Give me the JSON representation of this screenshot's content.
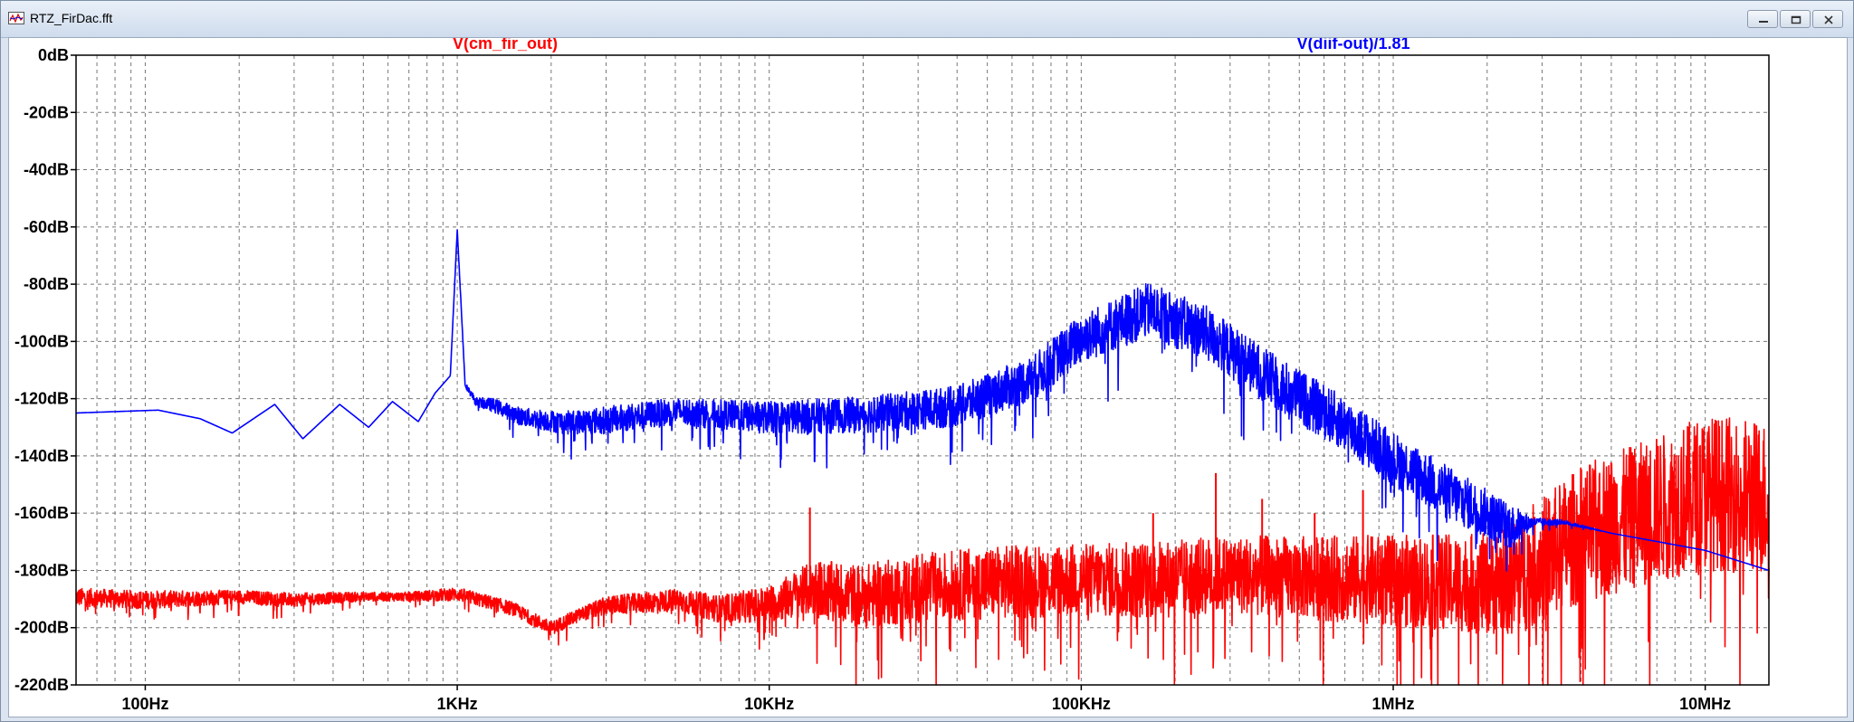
{
  "window": {
    "title": "RTZ_FirDac.fft",
    "icon": "waveform-file-icon",
    "buttons": [
      "minimize-icon",
      "maximize-icon",
      "close-icon"
    ]
  },
  "chart_data": {
    "type": "line",
    "xscale": "log",
    "xlim": [
      60,
      16000000
    ],
    "ylim": [
      -220,
      0
    ],
    "grid": true,
    "xlabel": "",
    "ylabel": "",
    "x_ticks": [
      {
        "value": 100,
        "label": "100Hz"
      },
      {
        "value": 1000,
        "label": "1KHz"
      },
      {
        "value": 10000,
        "label": "10KHz"
      },
      {
        "value": 100000,
        "label": "100KHz"
      },
      {
        "value": 1000000,
        "label": "1MHz"
      },
      {
        "value": 10000000,
        "label": "10MHz"
      }
    ],
    "y_ticks": [
      {
        "value": 0,
        "label": "0dB"
      },
      {
        "value": -20,
        "label": "-20dB"
      },
      {
        "value": -40,
        "label": "-40dB"
      },
      {
        "value": -60,
        "label": "-60dB"
      },
      {
        "value": -80,
        "label": "-80dB"
      },
      {
        "value": -100,
        "label": "-100dB"
      },
      {
        "value": -120,
        "label": "-120dB"
      },
      {
        "value": -140,
        "label": "-140dB"
      },
      {
        "value": -160,
        "label": "-160dB"
      },
      {
        "value": -180,
        "label": "-180dB"
      },
      {
        "value": -200,
        "label": "-200dB"
      },
      {
        "value": -220,
        "label": "-220dB"
      }
    ],
    "series": [
      {
        "name": "V(cm_fir_out)",
        "color": "#ff0000",
        "envelope": {
          "x": [
            60,
            100,
            200,
            300,
            500,
            700,
            1000,
            1500,
            2000,
            2500,
            3000,
            5000,
            7000,
            10000,
            14000,
            20000,
            30000,
            50000,
            100000,
            170000,
            300000,
            500000,
            1000000,
            2000000,
            2500000,
            4000000,
            7000000,
            10000000,
            16000000
          ],
          "y": [
            -189,
            -190,
            -189,
            -190,
            -189,
            -189,
            -188,
            -193,
            -200,
            -195,
            -192,
            -190,
            -193,
            -191,
            -185,
            -188,
            -185,
            -183,
            -182,
            -182,
            -180,
            -181,
            -182,
            -183,
            -180,
            -165,
            -156,
            -150,
            -152
          ]
        },
        "noise_db": [
          4,
          4,
          3,
          3,
          2,
          2,
          3,
          3,
          3,
          3,
          4,
          5,
          6,
          8,
          12,
          14,
          15,
          16,
          16,
          17,
          17,
          18,
          20,
          22,
          26,
          30,
          32,
          34,
          34
        ],
        "spurs": [
          {
            "x": 13500,
            "y": -158
          },
          {
            "x": 170000,
            "y": -160
          },
          {
            "x": 270000,
            "y": -146
          },
          {
            "x": 380000,
            "y": -155
          },
          {
            "x": 560000,
            "y": -160
          },
          {
            "x": 800000,
            "y": -152
          }
        ]
      },
      {
        "name": "V(diif-out)/1.81",
        "color": "#0000ff",
        "envelope": {
          "x": [
            60,
            110,
            150,
            190,
            260,
            320,
            420,
            520,
            620,
            750,
            850,
            950,
            1000,
            1060,
            1150,
            1300,
            1600,
            2200,
            3000,
            5000,
            10000,
            20000,
            40000,
            70000,
            100000,
            165000,
            250000,
            400000,
            700000,
            1000000,
            1500000,
            2400000,
            2800000,
            3500000,
            5000000,
            10000000,
            16000000
          ],
          "y": [
            -125,
            -124,
            -127,
            -132,
            -122,
            -134,
            -122,
            -130,
            -121,
            -128,
            -118,
            -112,
            -61,
            -115,
            -121,
            -122,
            -126,
            -128,
            -127,
            -124,
            -126,
            -125,
            -122,
            -112,
            -98,
            -88,
            -96,
            -112,
            -128,
            -140,
            -152,
            -164,
            -163,
            -163,
            -167,
            -173,
            -180
          ]
        },
        "noise_db": [
          0,
          0,
          0,
          0,
          0,
          0,
          0,
          0,
          0,
          0,
          0,
          0,
          0,
          1,
          2,
          3,
          4,
          5,
          6,
          6,
          7,
          8,
          9,
          10,
          11,
          12,
          12,
          12,
          12,
          12,
          12,
          10,
          2,
          1,
          0,
          0,
          0
        ]
      }
    ]
  }
}
